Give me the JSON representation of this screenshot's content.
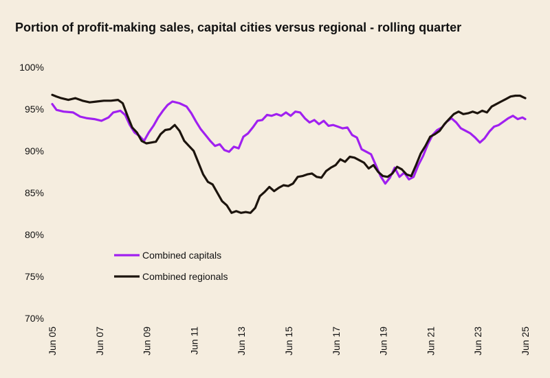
{
  "chart_data": {
    "type": "line",
    "title": "Portion of profit-making sales, capital cities versus regional - rolling quarter",
    "xlabel": "",
    "ylabel": "",
    "ylim": [
      70,
      100
    ],
    "yticks": [
      "100%",
      "95%",
      "90%",
      "85%",
      "80%",
      "75%",
      "70%"
    ],
    "ytick_values": [
      100,
      95,
      90,
      85,
      80,
      75,
      70
    ],
    "x_start": 2005.42,
    "x_end": 2025.42,
    "xticks": [
      "Jun 05",
      "Jun 07",
      "Jun 09",
      "Jun 11",
      "Jun 13",
      "Jun 15",
      "Jun 17",
      "Jun 19",
      "Jun 21",
      "Jun 23",
      "Jun 25"
    ],
    "xtick_values": [
      2005.42,
      2007.42,
      2009.42,
      2011.42,
      2013.42,
      2015.42,
      2017.42,
      2019.42,
      2021.42,
      2023.42,
      2025.42
    ],
    "legend_position": "lower-left",
    "series": [
      {
        "name": "Combined capitals",
        "color": "#a020f0",
        "points": [
          [
            2005.42,
            95.6
          ],
          [
            2005.6,
            94.9
          ],
          [
            2005.9,
            94.7
          ],
          [
            2006.3,
            94.6
          ],
          [
            2006.6,
            94.1
          ],
          [
            2006.9,
            93.9
          ],
          [
            2007.2,
            93.8
          ],
          [
            2007.5,
            93.6
          ],
          [
            2007.8,
            94.0
          ],
          [
            2008.0,
            94.6
          ],
          [
            2008.3,
            94.8
          ],
          [
            2008.5,
            94.3
          ],
          [
            2008.7,
            93.1
          ],
          [
            2008.9,
            92.2
          ],
          [
            2009.1,
            91.8
          ],
          [
            2009.3,
            91.2
          ],
          [
            2009.5,
            92.2
          ],
          [
            2009.7,
            93.0
          ],
          [
            2009.9,
            94.0
          ],
          [
            2010.1,
            94.8
          ],
          [
            2010.3,
            95.5
          ],
          [
            2010.5,
            95.9
          ],
          [
            2010.8,
            95.7
          ],
          [
            2011.1,
            95.3
          ],
          [
            2011.3,
            94.5
          ],
          [
            2011.5,
            93.5
          ],
          [
            2011.7,
            92.6
          ],
          [
            2011.9,
            91.9
          ],
          [
            2012.1,
            91.2
          ],
          [
            2012.3,
            90.6
          ],
          [
            2012.5,
            90.8
          ],
          [
            2012.7,
            90.1
          ],
          [
            2012.9,
            89.9
          ],
          [
            2013.1,
            90.5
          ],
          [
            2013.3,
            90.3
          ],
          [
            2013.5,
            91.7
          ],
          [
            2013.7,
            92.1
          ],
          [
            2013.9,
            92.8
          ],
          [
            2014.1,
            93.6
          ],
          [
            2014.3,
            93.7
          ],
          [
            2014.5,
            94.3
          ],
          [
            2014.7,
            94.2
          ],
          [
            2014.9,
            94.4
          ],
          [
            2015.1,
            94.2
          ],
          [
            2015.3,
            94.6
          ],
          [
            2015.5,
            94.2
          ],
          [
            2015.7,
            94.7
          ],
          [
            2015.9,
            94.6
          ],
          [
            2016.1,
            93.9
          ],
          [
            2016.3,
            93.4
          ],
          [
            2016.5,
            93.7
          ],
          [
            2016.7,
            93.2
          ],
          [
            2016.9,
            93.6
          ],
          [
            2017.1,
            93.0
          ],
          [
            2017.3,
            93.1
          ],
          [
            2017.5,
            92.9
          ],
          [
            2017.7,
            92.7
          ],
          [
            2017.9,
            92.8
          ],
          [
            2018.1,
            91.9
          ],
          [
            2018.3,
            91.6
          ],
          [
            2018.5,
            90.2
          ],
          [
            2018.7,
            89.9
          ],
          [
            2018.9,
            89.6
          ],
          [
            2019.1,
            88.3
          ],
          [
            2019.3,
            87.0
          ],
          [
            2019.5,
            86.1
          ],
          [
            2019.7,
            86.8
          ],
          [
            2019.9,
            88.0
          ],
          [
            2020.1,
            86.9
          ],
          [
            2020.3,
            87.4
          ],
          [
            2020.5,
            86.6
          ],
          [
            2020.7,
            86.9
          ],
          [
            2020.9,
            88.3
          ],
          [
            2021.1,
            89.4
          ],
          [
            2021.3,
            90.8
          ],
          [
            2021.5,
            91.9
          ],
          [
            2021.7,
            92.5
          ],
          [
            2021.9,
            92.8
          ],
          [
            2022.1,
            93.5
          ],
          [
            2022.3,
            93.9
          ],
          [
            2022.5,
            93.4
          ],
          [
            2022.7,
            92.7
          ],
          [
            2022.9,
            92.4
          ],
          [
            2023.1,
            92.1
          ],
          [
            2023.3,
            91.6
          ],
          [
            2023.5,
            91.0
          ],
          [
            2023.7,
            91.5
          ],
          [
            2023.9,
            92.3
          ],
          [
            2024.1,
            92.9
          ],
          [
            2024.3,
            93.1
          ],
          [
            2024.5,
            93.5
          ],
          [
            2024.7,
            93.9
          ],
          [
            2024.9,
            94.2
          ],
          [
            2025.1,
            93.8
          ],
          [
            2025.3,
            94.0
          ],
          [
            2025.42,
            93.8
          ]
        ]
      },
      {
        "name": "Combined regionals",
        "color": "#1c140d",
        "points": [
          [
            2005.42,
            96.7
          ],
          [
            2005.6,
            96.5
          ],
          [
            2005.8,
            96.3
          ],
          [
            2006.1,
            96.1
          ],
          [
            2006.4,
            96.3
          ],
          [
            2006.7,
            96.0
          ],
          [
            2007.0,
            95.8
          ],
          [
            2007.3,
            95.9
          ],
          [
            2007.6,
            96.0
          ],
          [
            2007.9,
            96.0
          ],
          [
            2008.2,
            96.1
          ],
          [
            2008.4,
            95.7
          ],
          [
            2008.6,
            94.2
          ],
          [
            2008.8,
            92.8
          ],
          [
            2009.0,
            92.2
          ],
          [
            2009.2,
            91.2
          ],
          [
            2009.4,
            90.9
          ],
          [
            2009.6,
            91.0
          ],
          [
            2009.8,
            91.1
          ],
          [
            2010.0,
            92.0
          ],
          [
            2010.2,
            92.5
          ],
          [
            2010.4,
            92.6
          ],
          [
            2010.6,
            93.1
          ],
          [
            2010.8,
            92.4
          ],
          [
            2011.0,
            91.2
          ],
          [
            2011.2,
            90.6
          ],
          [
            2011.4,
            90.0
          ],
          [
            2011.6,
            88.6
          ],
          [
            2011.8,
            87.2
          ],
          [
            2012.0,
            86.3
          ],
          [
            2012.2,
            86.0
          ],
          [
            2012.4,
            85.0
          ],
          [
            2012.6,
            84.0
          ],
          [
            2012.8,
            83.5
          ],
          [
            2013.0,
            82.6
          ],
          [
            2013.2,
            82.8
          ],
          [
            2013.4,
            82.6
          ],
          [
            2013.6,
            82.7
          ],
          [
            2013.8,
            82.6
          ],
          [
            2014.0,
            83.2
          ],
          [
            2014.2,
            84.6
          ],
          [
            2014.4,
            85.1
          ],
          [
            2014.6,
            85.7
          ],
          [
            2014.8,
            85.2
          ],
          [
            2015.0,
            85.6
          ],
          [
            2015.2,
            85.9
          ],
          [
            2015.4,
            85.8
          ],
          [
            2015.6,
            86.1
          ],
          [
            2015.8,
            86.9
          ],
          [
            2016.0,
            87.0
          ],
          [
            2016.2,
            87.2
          ],
          [
            2016.4,
            87.3
          ],
          [
            2016.6,
            86.9
          ],
          [
            2016.8,
            86.8
          ],
          [
            2017.0,
            87.6
          ],
          [
            2017.2,
            88.0
          ],
          [
            2017.4,
            88.3
          ],
          [
            2017.6,
            89.0
          ],
          [
            2017.8,
            88.7
          ],
          [
            2018.0,
            89.3
          ],
          [
            2018.2,
            89.2
          ],
          [
            2018.4,
            88.9
          ],
          [
            2018.6,
            88.6
          ],
          [
            2018.8,
            87.9
          ],
          [
            2019.0,
            88.3
          ],
          [
            2019.2,
            87.5
          ],
          [
            2019.4,
            87.0
          ],
          [
            2019.6,
            86.9
          ],
          [
            2019.8,
            87.3
          ],
          [
            2020.0,
            88.1
          ],
          [
            2020.2,
            87.8
          ],
          [
            2020.4,
            87.2
          ],
          [
            2020.6,
            87.0
          ],
          [
            2020.8,
            88.3
          ],
          [
            2021.0,
            89.7
          ],
          [
            2021.2,
            90.6
          ],
          [
            2021.4,
            91.7
          ],
          [
            2021.6,
            92.0
          ],
          [
            2021.8,
            92.4
          ],
          [
            2022.0,
            93.2
          ],
          [
            2022.2,
            93.8
          ],
          [
            2022.4,
            94.4
          ],
          [
            2022.6,
            94.7
          ],
          [
            2022.8,
            94.4
          ],
          [
            2023.0,
            94.5
          ],
          [
            2023.2,
            94.7
          ],
          [
            2023.4,
            94.5
          ],
          [
            2023.6,
            94.8
          ],
          [
            2023.8,
            94.6
          ],
          [
            2024.0,
            95.3
          ],
          [
            2024.2,
            95.6
          ],
          [
            2024.4,
            95.9
          ],
          [
            2024.6,
            96.2
          ],
          [
            2024.8,
            96.5
          ],
          [
            2025.0,
            96.6
          ],
          [
            2025.2,
            96.6
          ],
          [
            2025.42,
            96.3
          ]
        ]
      }
    ]
  }
}
